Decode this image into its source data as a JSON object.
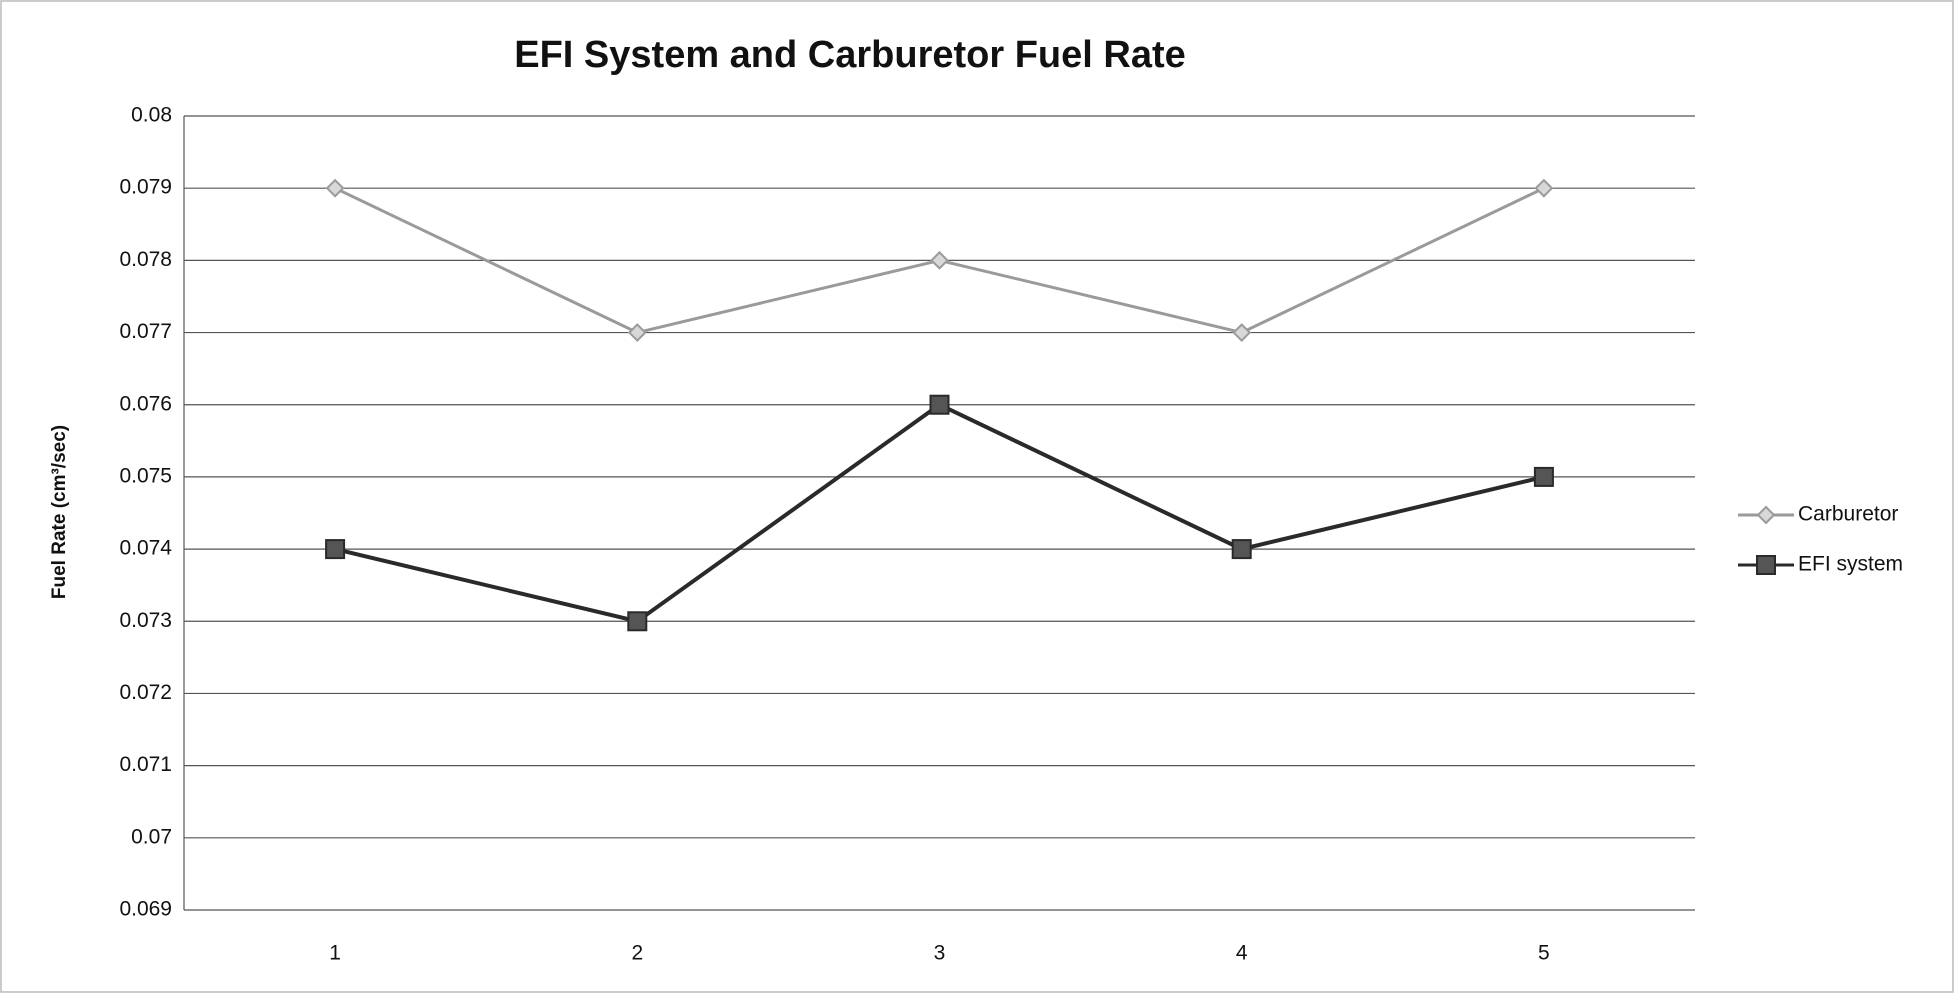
{
  "chart_data": {
    "type": "line",
    "title": "EFI System and Carburetor Fuel Rate",
    "y_label": "Fuel Rate (cm³/sec)",
    "categories": [
      "1",
      "2",
      "3",
      "4",
      "5"
    ],
    "series": [
      {
        "name": "Carburetor",
        "color": "#9a9a9a",
        "marker": "diamond",
        "values": [
          0.079,
          0.077,
          0.078,
          0.077,
          0.079
        ]
      },
      {
        "name": "EFI system",
        "color": "#2a2a2a",
        "marker": "square",
        "values": [
          0.074,
          0.073,
          0.076,
          0.074,
          0.075
        ]
      }
    ],
    "ylim": [
      0.069,
      0.08
    ],
    "yticks": [
      0.069,
      0.07,
      0.071,
      0.072,
      0.073,
      0.074,
      0.075,
      0.076,
      0.077,
      0.078,
      0.079,
      0.08
    ],
    "grid": true,
    "legend": "right"
  }
}
